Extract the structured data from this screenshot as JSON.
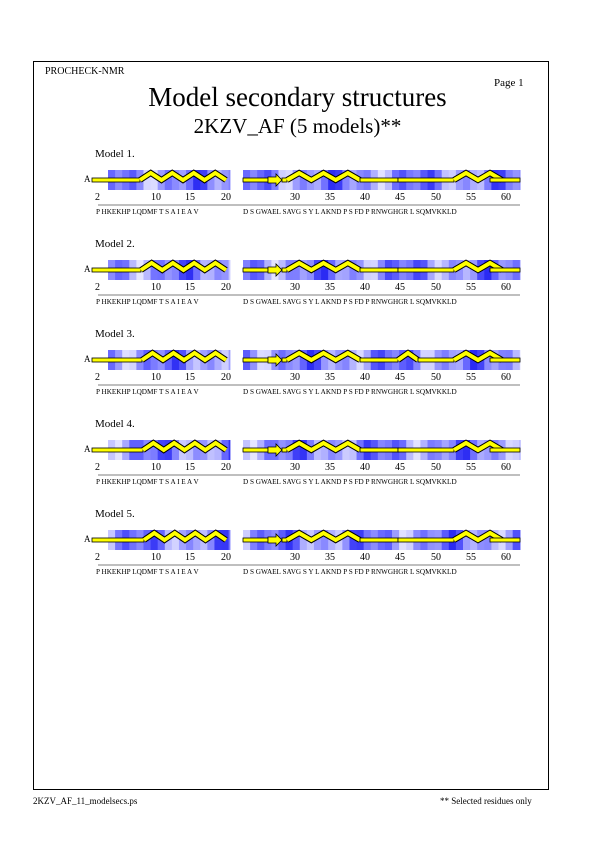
{
  "header": {
    "program": "PROCHECK-NMR",
    "page": "Page  1",
    "title": "Model secondary structures",
    "subtitle": "2KZV_AF (5 models)**"
  },
  "footer": {
    "file": "2KZV_AF_11_modelsecs.ps",
    "note": "** Selected residues only"
  },
  "colors": {
    "helix": "#ffff00",
    "outline": "#000000",
    "shade_dark": "#2c2cd8",
    "shade_light": "#e6e6fb"
  },
  "sequence": {
    "segment1": "P HKEKHP LQDMF T S A I E A V",
    "segment2": "D S GWAEL SAVG S Y L AKND P S FD P RNWGHGR L SQMVKKLD",
    "ticks1": [
      "2",
      "10",
      "15",
      "20"
    ],
    "ticks2": [
      "30",
      "35",
      "40",
      "45",
      "50",
      "55",
      "60"
    ]
  },
  "models": [
    {
      "label": "Model  1.",
      "chain": "A"
    },
    {
      "label": "Model  2.",
      "chain": "A"
    },
    {
      "label": "Model  3.",
      "chain": "A"
    },
    {
      "label": "Model  4.",
      "chain": "A"
    },
    {
      "label": "Model  5.",
      "chain": "A"
    }
  ]
}
